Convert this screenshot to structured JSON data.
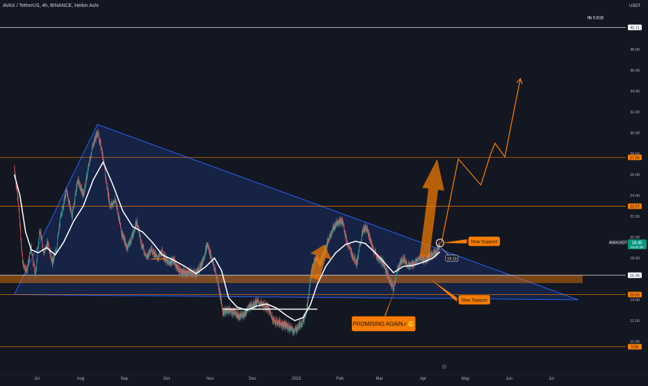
{
  "header": {
    "symbol_line": "AVAX / TetherUS, 4h, BINANCE, Heikin Ashi",
    "currency": "USDT"
  },
  "chart_data": {
    "type": "candlestick",
    "title": "AVAX / TetherUS, 4h, BINANCE, Heikin Ashi",
    "x_tick_labels": [
      "Jul",
      "Aug",
      "Sep",
      "Oct",
      "Nov",
      "Dec",
      "2023",
      "Feb",
      "Mar",
      "Apr",
      "May",
      "Jun",
      "Jul"
    ],
    "y_tick_labels": [
      "10.00",
      "12.00",
      "14.00",
      "18.00",
      "20.00",
      "22.00",
      "24.00",
      "26.00",
      "28.00",
      "30.00",
      "32.00",
      "34.00",
      "36.00",
      "38.00"
    ],
    "ylim": [
      9.0,
      41.8
    ],
    "grid": false,
    "price_series": {
      "name": "",
      "color": "#26a69a",
      "color_down": "#ef5350",
      "points": [
        {
          "x": "2022-06-15",
          "y": 26.8
        },
        {
          "x": "2022-06-18",
          "y": 23.0
        },
        {
          "x": "2022-06-21",
          "y": 17.5
        },
        {
          "x": "2022-06-24",
          "y": 16.8
        },
        {
          "x": "2022-06-27",
          "y": 19.0
        },
        {
          "x": "2022-06-30",
          "y": 16.3
        },
        {
          "x": "2022-07-03",
          "y": 20.8
        },
        {
          "x": "2022-07-06",
          "y": 18.5
        },
        {
          "x": "2022-07-09",
          "y": 19.5
        },
        {
          "x": "2022-07-12",
          "y": 17.5
        },
        {
          "x": "2022-07-15",
          "y": 19.0
        },
        {
          "x": "2022-07-18",
          "y": 22.0
        },
        {
          "x": "2022-07-22",
          "y": 24.5
        },
        {
          "x": "2022-07-26",
          "y": 22.0
        },
        {
          "x": "2022-07-30",
          "y": 25.5
        },
        {
          "x": "2022-08-03",
          "y": 24.0
        },
        {
          "x": "2022-08-07",
          "y": 27.0
        },
        {
          "x": "2022-08-10",
          "y": 29.0
        },
        {
          "x": "2022-08-13",
          "y": 30.0
        },
        {
          "x": "2022-08-16",
          "y": 28.5
        },
        {
          "x": "2022-08-19",
          "y": 25.5
        },
        {
          "x": "2022-08-22",
          "y": 23.0
        },
        {
          "x": "2022-08-26",
          "y": 23.5
        },
        {
          "x": "2022-08-30",
          "y": 20.5
        },
        {
          "x": "2022-09-03",
          "y": 19.0
        },
        {
          "x": "2022-09-06",
          "y": 19.8
        },
        {
          "x": "2022-09-10",
          "y": 21.5
        },
        {
          "x": "2022-09-13",
          "y": 19.5
        },
        {
          "x": "2022-09-17",
          "y": 18.0
        },
        {
          "x": "2022-09-20",
          "y": 19.0
        },
        {
          "x": "2022-09-24",
          "y": 18.0
        },
        {
          "x": "2022-09-28",
          "y": 18.5
        },
        {
          "x": "2022-10-02",
          "y": 17.5
        },
        {
          "x": "2022-10-06",
          "y": 17.8
        },
        {
          "x": "2022-10-10",
          "y": 16.8
        },
        {
          "x": "2022-10-14",
          "y": 16.5
        },
        {
          "x": "2022-10-18",
          "y": 16.6
        },
        {
          "x": "2022-10-22",
          "y": 16.5
        },
        {
          "x": "2022-10-26",
          "y": 17.5
        },
        {
          "x": "2022-10-30",
          "y": 19.3
        },
        {
          "x": "2022-11-02",
          "y": 18.0
        },
        {
          "x": "2022-11-06",
          "y": 16.0
        },
        {
          "x": "2022-11-08",
          "y": 14.5
        },
        {
          "x": "2022-11-10",
          "y": 12.8
        },
        {
          "x": "2022-11-14",
          "y": 13.0
        },
        {
          "x": "2022-11-18",
          "y": 12.8
        },
        {
          "x": "2022-11-22",
          "y": 12.3
        },
        {
          "x": "2022-11-26",
          "y": 12.8
        },
        {
          "x": "2022-11-30",
          "y": 13.5
        },
        {
          "x": "2022-12-04",
          "y": 13.8
        },
        {
          "x": "2022-12-08",
          "y": 13.5
        },
        {
          "x": "2022-12-12",
          "y": 13.2
        },
        {
          "x": "2022-12-16",
          "y": 12.0
        },
        {
          "x": "2022-12-20",
          "y": 11.8
        },
        {
          "x": "2022-12-24",
          "y": 11.6
        },
        {
          "x": "2022-12-28",
          "y": 11.2
        },
        {
          "x": "2022-12-31",
          "y": 11.0
        },
        {
          "x": "2023-01-03",
          "y": 11.5
        },
        {
          "x": "2023-01-06",
          "y": 12.0
        },
        {
          "x": "2023-01-09",
          "y": 13.5
        },
        {
          "x": "2023-01-12",
          "y": 17.0
        },
        {
          "x": "2023-01-15",
          "y": 18.0
        },
        {
          "x": "2023-01-18",
          "y": 17.5
        },
        {
          "x": "2023-01-22",
          "y": 19.0
        },
        {
          "x": "2023-01-26",
          "y": 20.5
        },
        {
          "x": "2023-01-30",
          "y": 21.5
        },
        {
          "x": "2023-02-03",
          "y": 21.5
        },
        {
          "x": "2023-02-06",
          "y": 19.5
        },
        {
          "x": "2023-02-09",
          "y": 18.5
        },
        {
          "x": "2023-02-13",
          "y": 17.5
        },
        {
          "x": "2023-02-17",
          "y": 20.5
        },
        {
          "x": "2023-02-20",
          "y": 21.0
        },
        {
          "x": "2023-02-24",
          "y": 19.0
        },
        {
          "x": "2023-02-28",
          "y": 18.0
        },
        {
          "x": "2023-03-04",
          "y": 17.5
        },
        {
          "x": "2023-03-08",
          "y": 16.0
        },
        {
          "x": "2023-03-11",
          "y": 15.0
        },
        {
          "x": "2023-03-14",
          "y": 17.0
        },
        {
          "x": "2023-03-18",
          "y": 18.0
        },
        {
          "x": "2023-03-22",
          "y": 17.2
        },
        {
          "x": "2023-03-26",
          "y": 17.5
        },
        {
          "x": "2023-03-30",
          "y": 18.0
        },
        {
          "x": "2023-04-03",
          "y": 17.8
        },
        {
          "x": "2023-04-07",
          "y": 18.3
        },
        {
          "x": "2023-04-10",
          "y": 18.5
        },
        {
          "x": "2023-04-13",
          "y": 19.45
        }
      ]
    },
    "moving_average": {
      "name": "",
      "color": "#ffffff",
      "points": [
        {
          "x": "2022-06-15",
          "y": 26.0
        },
        {
          "x": "2022-06-19",
          "y": 24.0
        },
        {
          "x": "2022-06-23",
          "y": 20.5
        },
        {
          "x": "2022-06-27",
          "y": 18.8
        },
        {
          "x": "2022-07-02",
          "y": 18.5
        },
        {
          "x": "2022-07-08",
          "y": 19.0
        },
        {
          "x": "2022-07-14",
          "y": 18.3
        },
        {
          "x": "2022-07-20",
          "y": 19.5
        },
        {
          "x": "2022-07-27",
          "y": 21.5
        },
        {
          "x": "2022-08-03",
          "y": 23.0
        },
        {
          "x": "2022-08-10",
          "y": 25.5
        },
        {
          "x": "2022-08-17",
          "y": 27.2
        },
        {
          "x": "2022-08-24",
          "y": 25.0
        },
        {
          "x": "2022-08-31",
          "y": 22.5
        },
        {
          "x": "2022-09-07",
          "y": 21.0
        },
        {
          "x": "2022-09-14",
          "y": 20.5
        },
        {
          "x": "2022-09-21",
          "y": 19.5
        },
        {
          "x": "2022-09-28",
          "y": 18.3
        },
        {
          "x": "2022-10-06",
          "y": 17.8
        },
        {
          "x": "2022-10-14",
          "y": 17.2
        },
        {
          "x": "2022-10-22",
          "y": 16.5
        },
        {
          "x": "2022-10-29",
          "y": 17.2
        },
        {
          "x": "2022-11-04",
          "y": 18.0
        },
        {
          "x": "2022-11-09",
          "y": 16.8
        },
        {
          "x": "2022-11-14",
          "y": 14.2
        },
        {
          "x": "2022-11-20",
          "y": 13.3
        },
        {
          "x": "2022-11-27",
          "y": 13.0
        },
        {
          "x": "2022-12-04",
          "y": 13.4
        },
        {
          "x": "2022-12-11",
          "y": 13.6
        },
        {
          "x": "2022-12-18",
          "y": 13.2
        },
        {
          "x": "2022-12-25",
          "y": 12.5
        },
        {
          "x": "2022-12-31",
          "y": 12.0
        },
        {
          "x": "2023-01-06",
          "y": 12.3
        },
        {
          "x": "2023-01-11",
          "y": 13.5
        },
        {
          "x": "2023-01-16",
          "y": 15.5
        },
        {
          "x": "2023-01-22",
          "y": 17.2
        },
        {
          "x": "2023-01-29",
          "y": 18.5
        },
        {
          "x": "2023-02-05",
          "y": 19.3
        },
        {
          "x": "2023-02-12",
          "y": 19.6
        },
        {
          "x": "2023-02-19",
          "y": 19.4
        },
        {
          "x": "2023-02-26",
          "y": 18.5
        },
        {
          "x": "2023-03-05",
          "y": 17.5
        },
        {
          "x": "2023-03-11",
          "y": 16.6
        },
        {
          "x": "2023-03-18",
          "y": 17.2
        },
        {
          "x": "2023-03-25",
          "y": 17.3
        },
        {
          "x": "2023-04-01",
          "y": 17.6
        },
        {
          "x": "2023-04-08",
          "y": 18.0
        },
        {
          "x": "2023-04-13",
          "y": 18.6
        }
      ]
    },
    "projection_path": {
      "color": "#f57c00",
      "points": [
        {
          "x": "2023-04-14",
          "y": 19.45
        },
        {
          "x": "2023-04-26",
          "y": 27.5
        },
        {
          "x": "2023-05-12",
          "y": 25.0
        },
        {
          "x": "2023-05-19",
          "y": 28.0
        },
        {
          "x": "2023-05-22",
          "y": 29.0
        },
        {
          "x": "2023-05-29",
          "y": 27.7
        },
        {
          "x": "2023-06-09",
          "y": 35.2
        }
      ]
    },
    "horizontal_levels": [
      {
        "value": 40.11,
        "label": "40.11",
        "fib_label": "fib 0.618",
        "color": "#ffffff"
      },
      {
        "value": 27.65,
        "label": "27.65",
        "fib_label": "",
        "color": "#f57c00"
      },
      {
        "value": 22.97,
        "label": "22.97",
        "fib_label": "",
        "color": "#f57c00"
      },
      {
        "value": 16.35,
        "label": "16.35",
        "fib_label": "",
        "color": "#ffffff"
      },
      {
        "value": 14.5,
        "label": "14.50",
        "fib_label": "",
        "color": "#f57c00"
      },
      {
        "value": 9.5,
        "label": "9.50",
        "fib_label": "",
        "color": "#f57c00"
      }
    ],
    "support_zone": {
      "from": 15.6,
      "to": 16.35,
      "color": "#f57c00"
    },
    "triangle": {
      "points": [
        {
          "x": "2022-06-15",
          "y": 14.5
        },
        {
          "x": "2022-08-13",
          "y": 30.8
        },
        {
          "x": "2023-07-20",
          "y": 14.0
        }
      ],
      "color": "#2962ff"
    },
    "base_line": {
      "from": "2022-11-10",
      "to": "2023-01-16",
      "value": 13.1
    },
    "support_short_line": {
      "from": "2022-09-20",
      "to": "2022-09-30",
      "value": 17.9
    },
    "current_price": {
      "symbol": "AVAXUSDT",
      "value": "19.45",
      "countdown": "02:01:29",
      "color": "#089981"
    },
    "price_marker": {
      "value": "19.13"
    },
    "big_arrows": [
      {
        "base_x": "2023-01-14",
        "base_y": 16.0,
        "tip_x": "2023-01-21",
        "tip_y": 19.3,
        "color": "#f57c00"
      },
      {
        "base_x": "2023-04-02",
        "base_y": 18.1,
        "tip_x": "2023-04-11",
        "tip_y": 27.5,
        "color": "#f57c00"
      }
    ],
    "annotations": [
      {
        "text": "Now Support",
        "x": "2023-05-03",
        "y": 19.6,
        "anchor_x": "2023-04-14",
        "anchor_y": 19.45
      },
      {
        "text": "Now Support",
        "x": "2023-04-26",
        "y": 14.0,
        "anchor_x": "2023-04-06",
        "anchor_y": 16.0
      },
      {
        "text": "PROMISING AGAIN✓✊",
        "x": "2023-03-04",
        "y": 11.7,
        "anchor_x": "2023-03-12",
        "anchor_y": 15.0
      }
    ],
    "logo_glyph": "⊘"
  }
}
